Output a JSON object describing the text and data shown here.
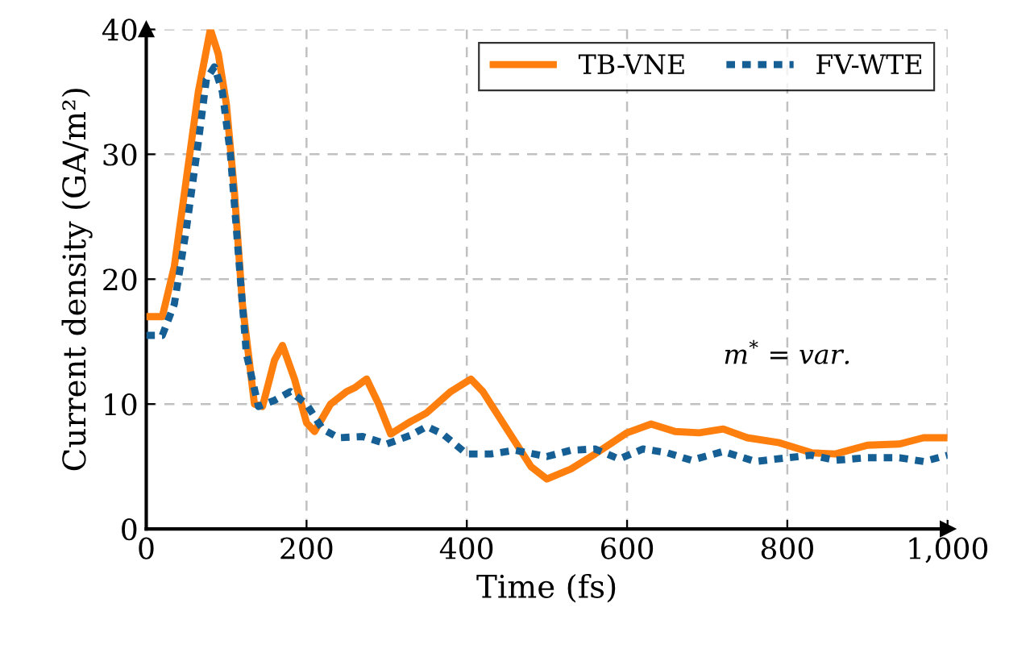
{
  "chart_data": {
    "type": "line",
    "xlabel": "Time (fs)",
    "ylabel": "Current density (GA/m²)",
    "xlim": [
      0,
      1000
    ],
    "ylim": [
      0,
      40
    ],
    "xticks": [
      0,
      200,
      400,
      600,
      800,
      {
        "value": 1000,
        "label": "1,000"
      }
    ],
    "yticks": [
      0,
      10,
      20,
      30,
      40
    ],
    "grid": true,
    "legend": "top right",
    "marker": "none",
    "annotations": [
      "m$^{*}$ = var."
    ],
    "series": [
      {
        "name": "TB-VNE",
        "color": "#ff7f0e",
        "line_style": "solid",
        "x": [
          0,
          20,
          35,
          50,
          65,
          80,
          90,
          100,
          110,
          120,
          135,
          145,
          160,
          170,
          185,
          200,
          210,
          230,
          250,
          260,
          275,
          290,
          305,
          330,
          350,
          380,
          405,
          420,
          450,
          480,
          500,
          530,
          560,
          600,
          630,
          660,
          690,
          720,
          750,
          790,
          830,
          860,
          900,
          940,
          970,
          1000
        ],
        "values": [
          17,
          17,
          21,
          28,
          35,
          40,
          38,
          34,
          27,
          18,
          10,
          9.8,
          13.5,
          14.7,
          12,
          8.5,
          7.8,
          10,
          11,
          11.3,
          12,
          10,
          7.6,
          8.6,
          9.3,
          11,
          12,
          11,
          8,
          5,
          4,
          4.8,
          6,
          7.7,
          8.4,
          7.8,
          7.7,
          8,
          7.3,
          6.9,
          6.1,
          6,
          6.7,
          6.8,
          7.3,
          7.3
        ]
      },
      {
        "name": "FV-WTE",
        "color": "#155f95",
        "line_style": "dotted",
        "x": [
          0,
          20,
          35,
          50,
          65,
          75,
          85,
          95,
          105,
          115,
          125,
          140,
          160,
          180,
          200,
          220,
          240,
          270,
          300,
          330,
          350,
          370,
          400,
          430,
          460,
          500,
          530,
          560,
          590,
          620,
          650,
          680,
          720,
          760,
          800,
          830,
          860,
          900,
          940,
          970,
          1000
        ],
        "values": [
          15.5,
          15.5,
          18,
          24,
          31,
          36,
          37,
          35,
          30,
          22,
          14,
          9.8,
          10.3,
          11,
          10,
          8,
          7.3,
          7.4,
          6.8,
          7.5,
          8.2,
          7.6,
          6,
          6,
          6.3,
          5.8,
          6.3,
          6.4,
          5.6,
          6.4,
          6.1,
          5.5,
          6.2,
          5.4,
          5.7,
          5.9,
          5.5,
          5.7,
          5.7,
          5.4,
          5.9
        ]
      }
    ]
  }
}
